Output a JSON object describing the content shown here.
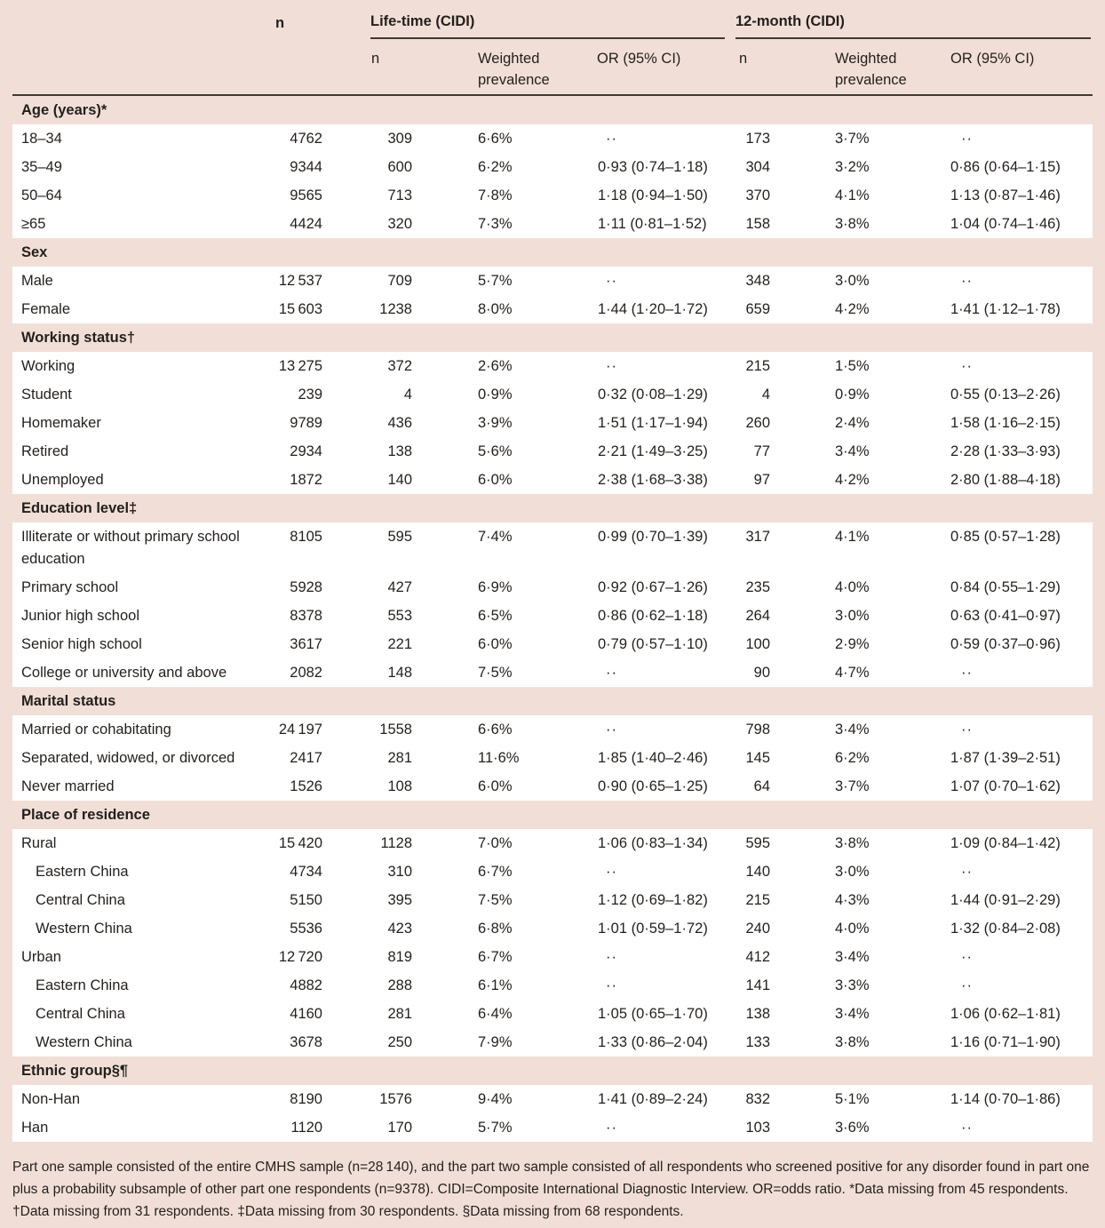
{
  "table": {
    "header": {
      "n": "n",
      "lifetime": "Life-time (CIDI)",
      "twelve_month": "12-month (CIDI)",
      "sub": [
        "n",
        "Weighted prevalence",
        "OR (95% CI)",
        "n",
        "Weighted prevalence",
        "OR (95% CI)"
      ]
    },
    "sections": [
      {
        "header": "Age (years)*",
        "rows": [
          {
            "label": "18–34",
            "cells": [
              "4762",
              "309",
              "6·6%",
              "··",
              "173",
              "3·7%",
              "··"
            ]
          },
          {
            "label": "35–49",
            "cells": [
              "9344",
              "600",
              "6·2%",
              "0·93 (0·74–1·18)",
              "304",
              "3·2%",
              "0·86 (0·64–1·15)"
            ]
          },
          {
            "label": "50–64",
            "cells": [
              "9565",
              "713",
              "7·8%",
              "1·18 (0·94–1·50)",
              "370",
              "4·1%",
              "1·13 (0·87–1·46)"
            ]
          },
          {
            "label": "≥65",
            "cells": [
              "4424",
              "320",
              "7·3%",
              "1·11 (0·81–1·52)",
              "158",
              "3·8%",
              "1·04 (0·74–1·46)"
            ]
          }
        ]
      },
      {
        "header": "Sex",
        "rows": [
          {
            "label": "Male",
            "cells": [
              "12 537",
              "709",
              "5·7%",
              "··",
              "348",
              "3·0%",
              "··"
            ]
          },
          {
            "label": "Female",
            "cells": [
              "15 603",
              "1238",
              "8·0%",
              "1·44 (1·20–1·72)",
              "659",
              "4·2%",
              "1·41 (1·12–1·78)"
            ]
          }
        ]
      },
      {
        "header": "Working status†",
        "rows": [
          {
            "label": "Working",
            "cells": [
              "13 275",
              "372",
              "2·6%",
              "··",
              "215",
              "1·5%",
              "··"
            ]
          },
          {
            "label": "Student",
            "cells": [
              "239",
              "4",
              "0·9%",
              "0·32 (0·08–1·29)",
              "4",
              "0·9%",
              "0·55 (0·13–2·26)"
            ]
          },
          {
            "label": "Homemaker",
            "cells": [
              "9789",
              "436",
              "3·9%",
              "1·51 (1·17–1·94)",
              "260",
              "2·4%",
              "1·58 (1·16–2·15)"
            ]
          },
          {
            "label": "Retired",
            "cells": [
              "2934",
              "138",
              "5·6%",
              "2·21 (1·49–3·25)",
              "77",
              "3·4%",
              "2·28 (1·33–3·93)"
            ]
          },
          {
            "label": "Unemployed",
            "cells": [
              "1872",
              "140",
              "6·0%",
              "2·38 (1·68–3·38)",
              "97",
              "4·2%",
              "2·80 (1·88–4·18)"
            ]
          }
        ]
      },
      {
        "header": "Education level‡",
        "rows": [
          {
            "label": "Illiterate or without primary school education",
            "cells": [
              "8105",
              "595",
              "7·4%",
              "0·99 (0·70–1·39)",
              "317",
              "4·1%",
              "0·85 (0·57–1·28)"
            ]
          },
          {
            "label": "Primary school",
            "cells": [
              "5928",
              "427",
              "6·9%",
              "0·92 (0·67–1·26)",
              "235",
              "4·0%",
              "0·84 (0·55–1·29)"
            ]
          },
          {
            "label": "Junior high school",
            "cells": [
              "8378",
              "553",
              "6·5%",
              "0·86 (0·62–1·18)",
              "264",
              "3·0%",
              "0·63 (0·41–0·97)"
            ]
          },
          {
            "label": "Senior high school",
            "cells": [
              "3617",
              "221",
              "6·0%",
              "0·79 (0·57–1·10)",
              "100",
              "2·9%",
              "0·59 (0·37–0·96)"
            ]
          },
          {
            "label": "College or university and above",
            "cells": [
              "2082",
              "148",
              "7·5%",
              "··",
              "90",
              "4·7%",
              "··"
            ]
          }
        ]
      },
      {
        "header": "Marital status",
        "rows": [
          {
            "label": "Married or cohabitating",
            "cells": [
              "24 197",
              "1558",
              "6·6%",
              "··",
              "798",
              "3·4%",
              "··"
            ]
          },
          {
            "label": "Separated, widowed, or divorced",
            "cells": [
              "2417",
              "281",
              "11·6%",
              "1·85 (1·40–2·46)",
              "145",
              "6·2%",
              "1·87 (1·39–2·51)"
            ]
          },
          {
            "label": "Never married",
            "cells": [
              "1526",
              "108",
              "6·0%",
              "0·90 (0·65–1·25)",
              "64",
              "3·7%",
              "1·07 (0·70–1·62)"
            ]
          }
        ]
      },
      {
        "header": "Place of residence",
        "rows": [
          {
            "label": "Rural",
            "cells": [
              "15 420",
              "1128",
              "7·0%",
              "1·06 (0·83–1·34)",
              "595",
              "3·8%",
              "1·09 (0·84–1·42)"
            ]
          },
          {
            "label": "Eastern China",
            "indent": true,
            "cells": [
              "4734",
              "310",
              "6·7%",
              "··",
              "140",
              "3·0%",
              "··"
            ]
          },
          {
            "label": "Central China",
            "indent": true,
            "cells": [
              "5150",
              "395",
              "7·5%",
              "1·12 (0·69–1·82)",
              "215",
              "4·3%",
              "1·44 (0·91–2·29)"
            ]
          },
          {
            "label": "Western China",
            "indent": true,
            "cells": [
              "5536",
              "423",
              "6·8%",
              "1·01 (0·59–1·72)",
              "240",
              "4·0%",
              "1·32 (0·84–2·08)"
            ]
          },
          {
            "label": "Urban",
            "cells": [
              "12 720",
              "819",
              "6·7%",
              "··",
              "412",
              "3·4%",
              "··"
            ]
          },
          {
            "label": "Eastern China",
            "indent": true,
            "cells": [
              "4882",
              "288",
              "6·1%",
              "··",
              "141",
              "3·3%",
              "··"
            ]
          },
          {
            "label": "Central China",
            "indent": true,
            "cells": [
              "4160",
              "281",
              "6·4%",
              "1·05 (0·65–1·70)",
              "138",
              "3·4%",
              "1·06 (0·62–1·81)"
            ]
          },
          {
            "label": "Western China",
            "indent": true,
            "cells": [
              "3678",
              "250",
              "7·9%",
              "1·33 (0·86–2·04)",
              "133",
              "3·8%",
              "1·16 (0·71–1·90)"
            ]
          }
        ]
      },
      {
        "header": "Ethnic group§¶",
        "rows": [
          {
            "label": "Non-Han",
            "cells": [
              "8190",
              "1576",
              "9·4%",
              "1·41 (0·89–2·24)",
              "832",
              "5·1%",
              "1·14 (0·70–1·86)"
            ]
          },
          {
            "label": "Han",
            "cells": [
              "1120",
              "170",
              "5·7%",
              "··",
              "103",
              "3·6%",
              "··"
            ]
          }
        ]
      }
    ]
  },
  "footnote": "Part one sample consisted of the entire CMHS sample (n=28 140), and the part two sample consisted of all respondents who screened positive for any disorder found in part one plus a probability subsample of other part one respondents (n=9378). CIDI=Composite International Diagnostic Interview. OR=odds ratio. *Data missing from 45 respondents. †Data missing from 31 respondents. ‡Data missing from 30 respondents. §Data missing from 68 respondents."
}
